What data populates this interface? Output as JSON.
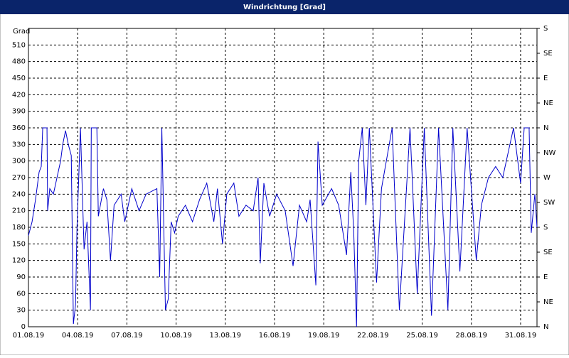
{
  "chart_data": {
    "type": "line",
    "title": "Windrichtung [Grad]",
    "y_label": "Grad",
    "grid": true,
    "color": "#0000cc",
    "x": [
      0,
      0.22,
      0.43,
      0.65,
      0.78,
      0.87,
      1.13,
      1.17,
      1.3,
      1.52,
      1.74,
      1.96,
      2.09,
      2.26,
      2.43,
      2.61,
      2.74,
      2.87,
      2.96,
      3.17,
      3.39,
      3.57,
      3.78,
      3.83,
      4.17,
      4.26,
      4.57,
      4.78,
      5,
      5.22,
      5.65,
      5.87,
      6.3,
      6.74,
      7.17,
      7.83,
      8,
      8.13,
      8.35,
      8.52,
      8.7,
      8.91,
      9.13,
      9.57,
      10,
      10.43,
      10.87,
      11.3,
      11.52,
      11.83,
      12.09,
      12.52,
      12.83,
      13.26,
      13.7,
      14,
      14.13,
      14.35,
      14.7,
      15.13,
      15.65,
      16.13,
      16.52,
      16.96,
      17.17,
      17.52,
      17.65,
      17.91,
      18.48,
      18.91,
      19.39,
      19.65,
      19.83,
      20,
      20.13,
      20.35,
      20.57,
      20.78,
      21.22,
      21.52,
      22.17,
      22.61,
      23.26,
      23.7,
      24.13,
      24.57,
      25,
      25.57,
      25.87,
      26.3,
      26.74,
      27.3,
      27.61,
      28.04,
      28.48,
      28.91,
      29.35,
      29.57,
      30,
      30.22,
      30.52,
      30.65,
      30.87,
      31
    ],
    "values": [
      165,
      190,
      230,
      280,
      290,
      360,
      360,
      210,
      250,
      240,
      270,
      300,
      330,
      355,
      330,
      310,
      5,
      40,
      180,
      360,
      140,
      190,
      30,
      360,
      360,
      200,
      250,
      230,
      120,
      220,
      240,
      190,
      250,
      210,
      240,
      250,
      90,
      360,
      30,
      50,
      190,
      170,
      200,
      220,
      190,
      230,
      260,
      190,
      250,
      150,
      240,
      260,
      200,
      220,
      210,
      270,
      115,
      260,
      200,
      240,
      210,
      110,
      220,
      190,
      230,
      75,
      335,
      220,
      250,
      220,
      130,
      280,
      170,
      0,
      300,
      360,
      220,
      360,
      80,
      250,
      360,
      30,
      360,
      60,
      360,
      20,
      360,
      30,
      360,
      100,
      360,
      120,
      220,
      270,
      290,
      270,
      330,
      360,
      260,
      360,
      360,
      170,
      240,
      180
    ],
    "xlim": [
      0,
      31
    ],
    "xticks": [
      {
        "value": 0,
        "label": "01.08.19"
      },
      {
        "value": 3,
        "label": "04.08.19"
      },
      {
        "value": 6,
        "label": "07.08.19"
      },
      {
        "value": 9,
        "label": "10.08.19"
      },
      {
        "value": 12,
        "label": "13.08.19"
      },
      {
        "value": 15,
        "label": "16.08.19"
      },
      {
        "value": 18,
        "label": "19.08.19"
      },
      {
        "value": 21,
        "label": "22.08.19"
      },
      {
        "value": 24,
        "label": "25.08.19"
      },
      {
        "value": 27,
        "label": "28.08.19"
      },
      {
        "value": 30,
        "label": "31.08.19"
      }
    ],
    "ylim": [
      0,
      540
    ],
    "yticks": [
      0,
      30,
      60,
      90,
      120,
      150,
      180,
      210,
      240,
      270,
      300,
      330,
      360,
      390,
      420,
      450,
      480,
      510
    ],
    "y2lim": [
      0,
      540
    ],
    "y2ticks": [
      {
        "value": 0,
        "label": "N"
      },
      {
        "value": 45,
        "label": "NE"
      },
      {
        "value": 90,
        "label": "E"
      },
      {
        "value": 135,
        "label": "SE"
      },
      {
        "value": 180,
        "label": "S"
      },
      {
        "value": 225,
        "label": "SW"
      },
      {
        "value": 270,
        "label": "W"
      },
      {
        "value": 315,
        "label": "NW"
      },
      {
        "value": 360,
        "label": "N"
      },
      {
        "value": 405,
        "label": "NE"
      },
      {
        "value": 450,
        "label": "E"
      },
      {
        "value": 495,
        "label": "SE"
      },
      {
        "value": 540,
        "label": "S"
      }
    ]
  }
}
